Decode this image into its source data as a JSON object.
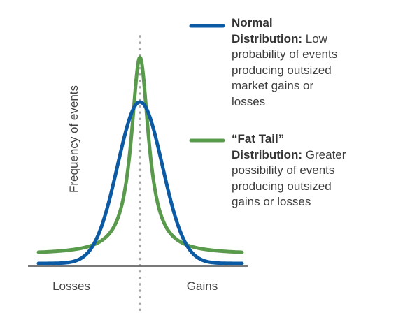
{
  "figure": {
    "y_axis_label": "Frequency of events",
    "x_left_label": "Losses",
    "x_right_label": "Gains"
  },
  "legend": [
    {
      "id": "normal",
      "color": "#0b5aa3",
      "title_line1": "Normal",
      "title_line2": "Distribution:",
      "description_lines": [
        " Low",
        "probability of events",
        "producing outsized",
        "market gains or",
        "losses"
      ]
    },
    {
      "id": "fat-tail",
      "color": "#5a9a4c",
      "title_line1": "“Fat Tail”",
      "title_line2": "Distribution:",
      "description_lines": [
        " Greater",
        "possibility of events",
        "producing outsized",
        "gains or losses"
      ]
    }
  ],
  "colors": {
    "normal_curve": "#0b5aa3",
    "fat_tail_curve": "#5a9a4c",
    "axis": "#666666",
    "center_dots": "#a8a8a8"
  }
}
